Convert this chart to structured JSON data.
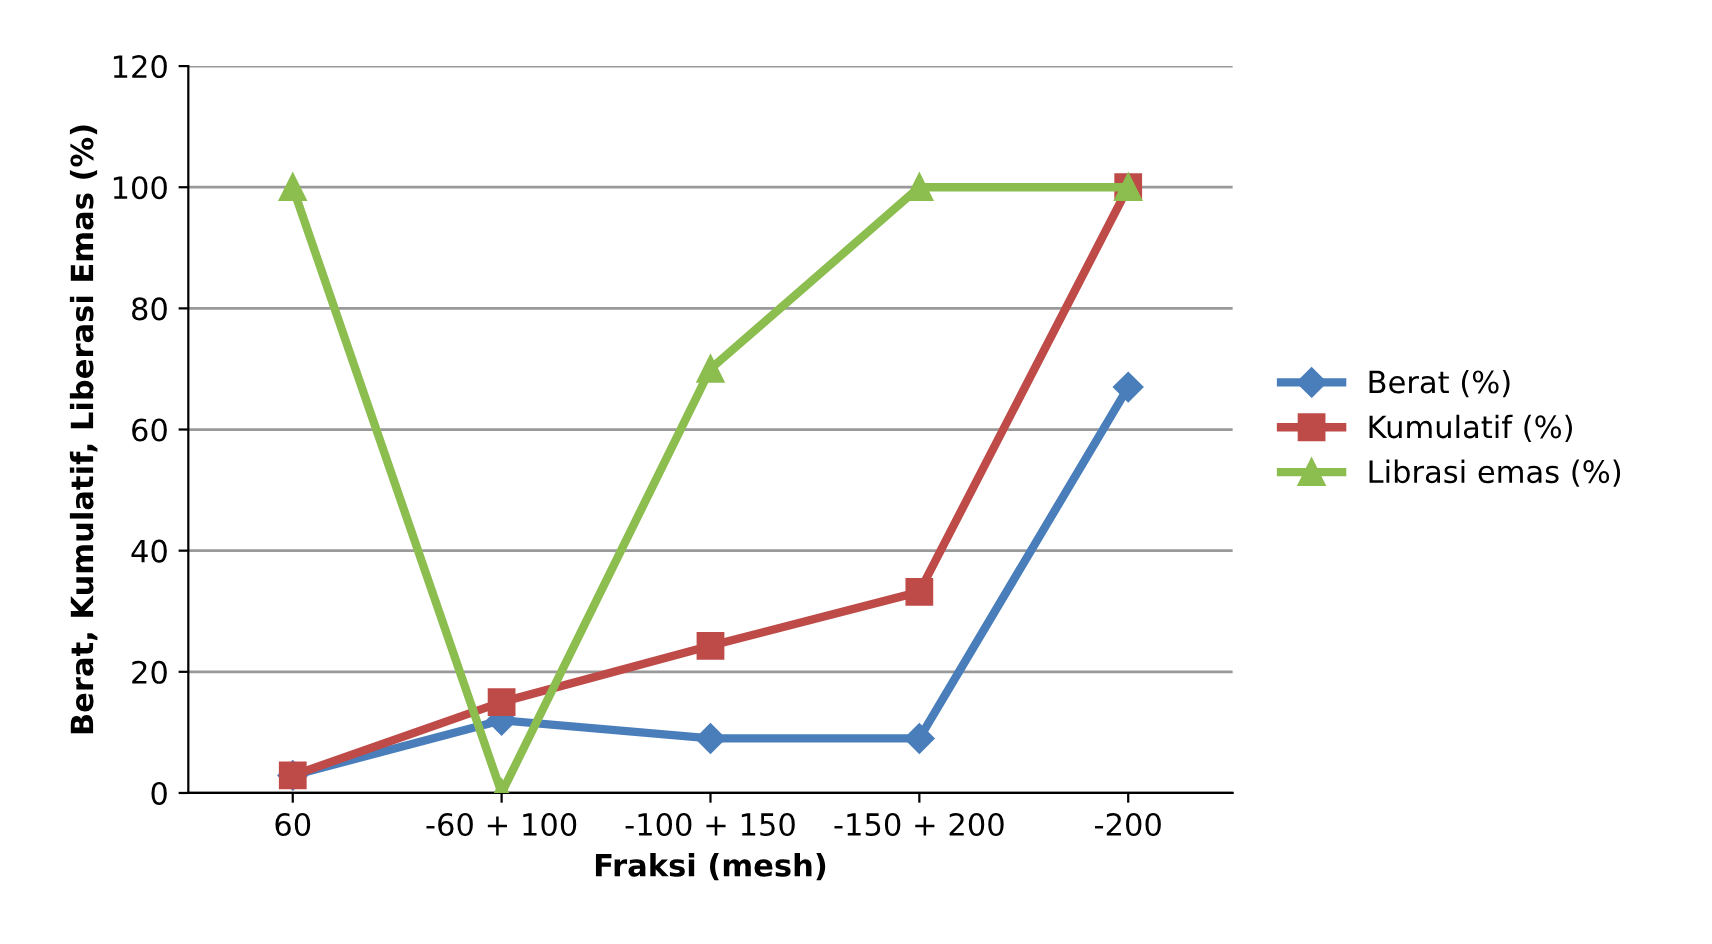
{
  "chart_data": {
    "type": "line",
    "xlabel": "Fraksi (mesh)",
    "ylabel": "Berat, Kumulatif, Liberasi Emas (%)",
    "categories": [
      "60",
      "-60 + 100",
      "-100 + 150",
      "-150 + 200",
      "-200"
    ],
    "series": [
      {
        "name": "Berat (%)",
        "color": "#4a7ebb",
        "marker": "diamond",
        "values": [
          2.9,
          12,
          9,
          9,
          67
        ]
      },
      {
        "name": "Kumulatif (%)",
        "color": "#be4b48",
        "marker": "square",
        "values": [
          2.9,
          15,
          24.3,
          33.2,
          100
        ]
      },
      {
        "name": "Librasi emas (%)",
        "color": "#8cbd4f",
        "marker": "triangle",
        "values": [
          100,
          0,
          70,
          100,
          100
        ]
      }
    ],
    "ylim": [
      0,
      120
    ],
    "yticks": [
      0,
      20,
      40,
      60,
      80,
      100,
      120
    ],
    "grid": "y",
    "legend": "right"
  }
}
